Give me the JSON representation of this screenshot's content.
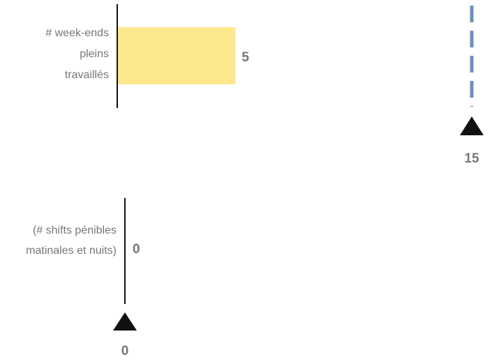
{
  "chart_data": [
    {
      "type": "bar",
      "categories": [
        [
          "# week-ends",
          "pleins",
          "travaillés"
        ]
      ],
      "values": [
        5
      ],
      "value_labels": [
        "5"
      ],
      "xlim": [
        0,
        15
      ],
      "reference": {
        "value": 15,
        "label": "15",
        "line_color": "#6e8fbf",
        "line_style": "dashed"
      },
      "bar_color": "#fde88d",
      "grid": false
    },
    {
      "type": "bar",
      "categories": [
        [
          "(# shifts pénibles",
          "matinales et nuits)"
        ]
      ],
      "values": [
        0
      ],
      "value_labels": [
        "0"
      ],
      "reference": {
        "value": 0,
        "label": "0"
      },
      "grid": false
    }
  ]
}
